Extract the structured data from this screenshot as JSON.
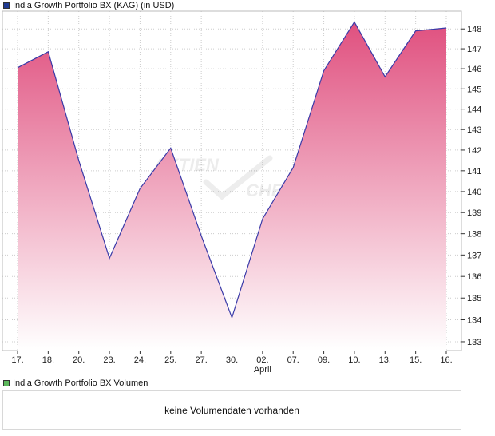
{
  "legend": {
    "price_label": "India Growth Portfolio BX (KAG) (in USD)",
    "price_color": "#1f3a93",
    "volume_label": "India Growth Portfolio BX Volumen",
    "volume_color": "#5cb85c"
  },
  "watermark": {
    "line1": "AKTIEN",
    "line2": "CHECK"
  },
  "volume_panel": {
    "message": "keine Volumendaten vorhanden"
  },
  "colors": {
    "line": "#3a3aa8",
    "fill_top": "#e0507f",
    "fill_bottom": "#ffffff",
    "grid": "#cccccc"
  },
  "chart_data": {
    "type": "area",
    "x": [
      "17.",
      "18.",
      "20.",
      "23.",
      "24.",
      "25.",
      "27.",
      "30.",
      "02.",
      "07.",
      "09.",
      "10.",
      "13.",
      "15.",
      "16."
    ],
    "x_sublabels": [
      {
        "index": 8,
        "label": "April"
      }
    ],
    "values": [
      146.05,
      146.85,
      141.5,
      136.85,
      140.15,
      142.1,
      137.9,
      134.1,
      138.7,
      141.15,
      145.9,
      148.35,
      145.6,
      147.9,
      148.05
    ],
    "y_ticks": [
      133,
      134,
      135,
      136,
      137,
      138,
      139,
      140,
      141,
      142,
      143,
      144,
      145,
      146,
      147,
      148
    ],
    "ylim": [
      132.6,
      148.9
    ],
    "y_scale": "log",
    "grid": true,
    "y_axis_side": "right"
  }
}
